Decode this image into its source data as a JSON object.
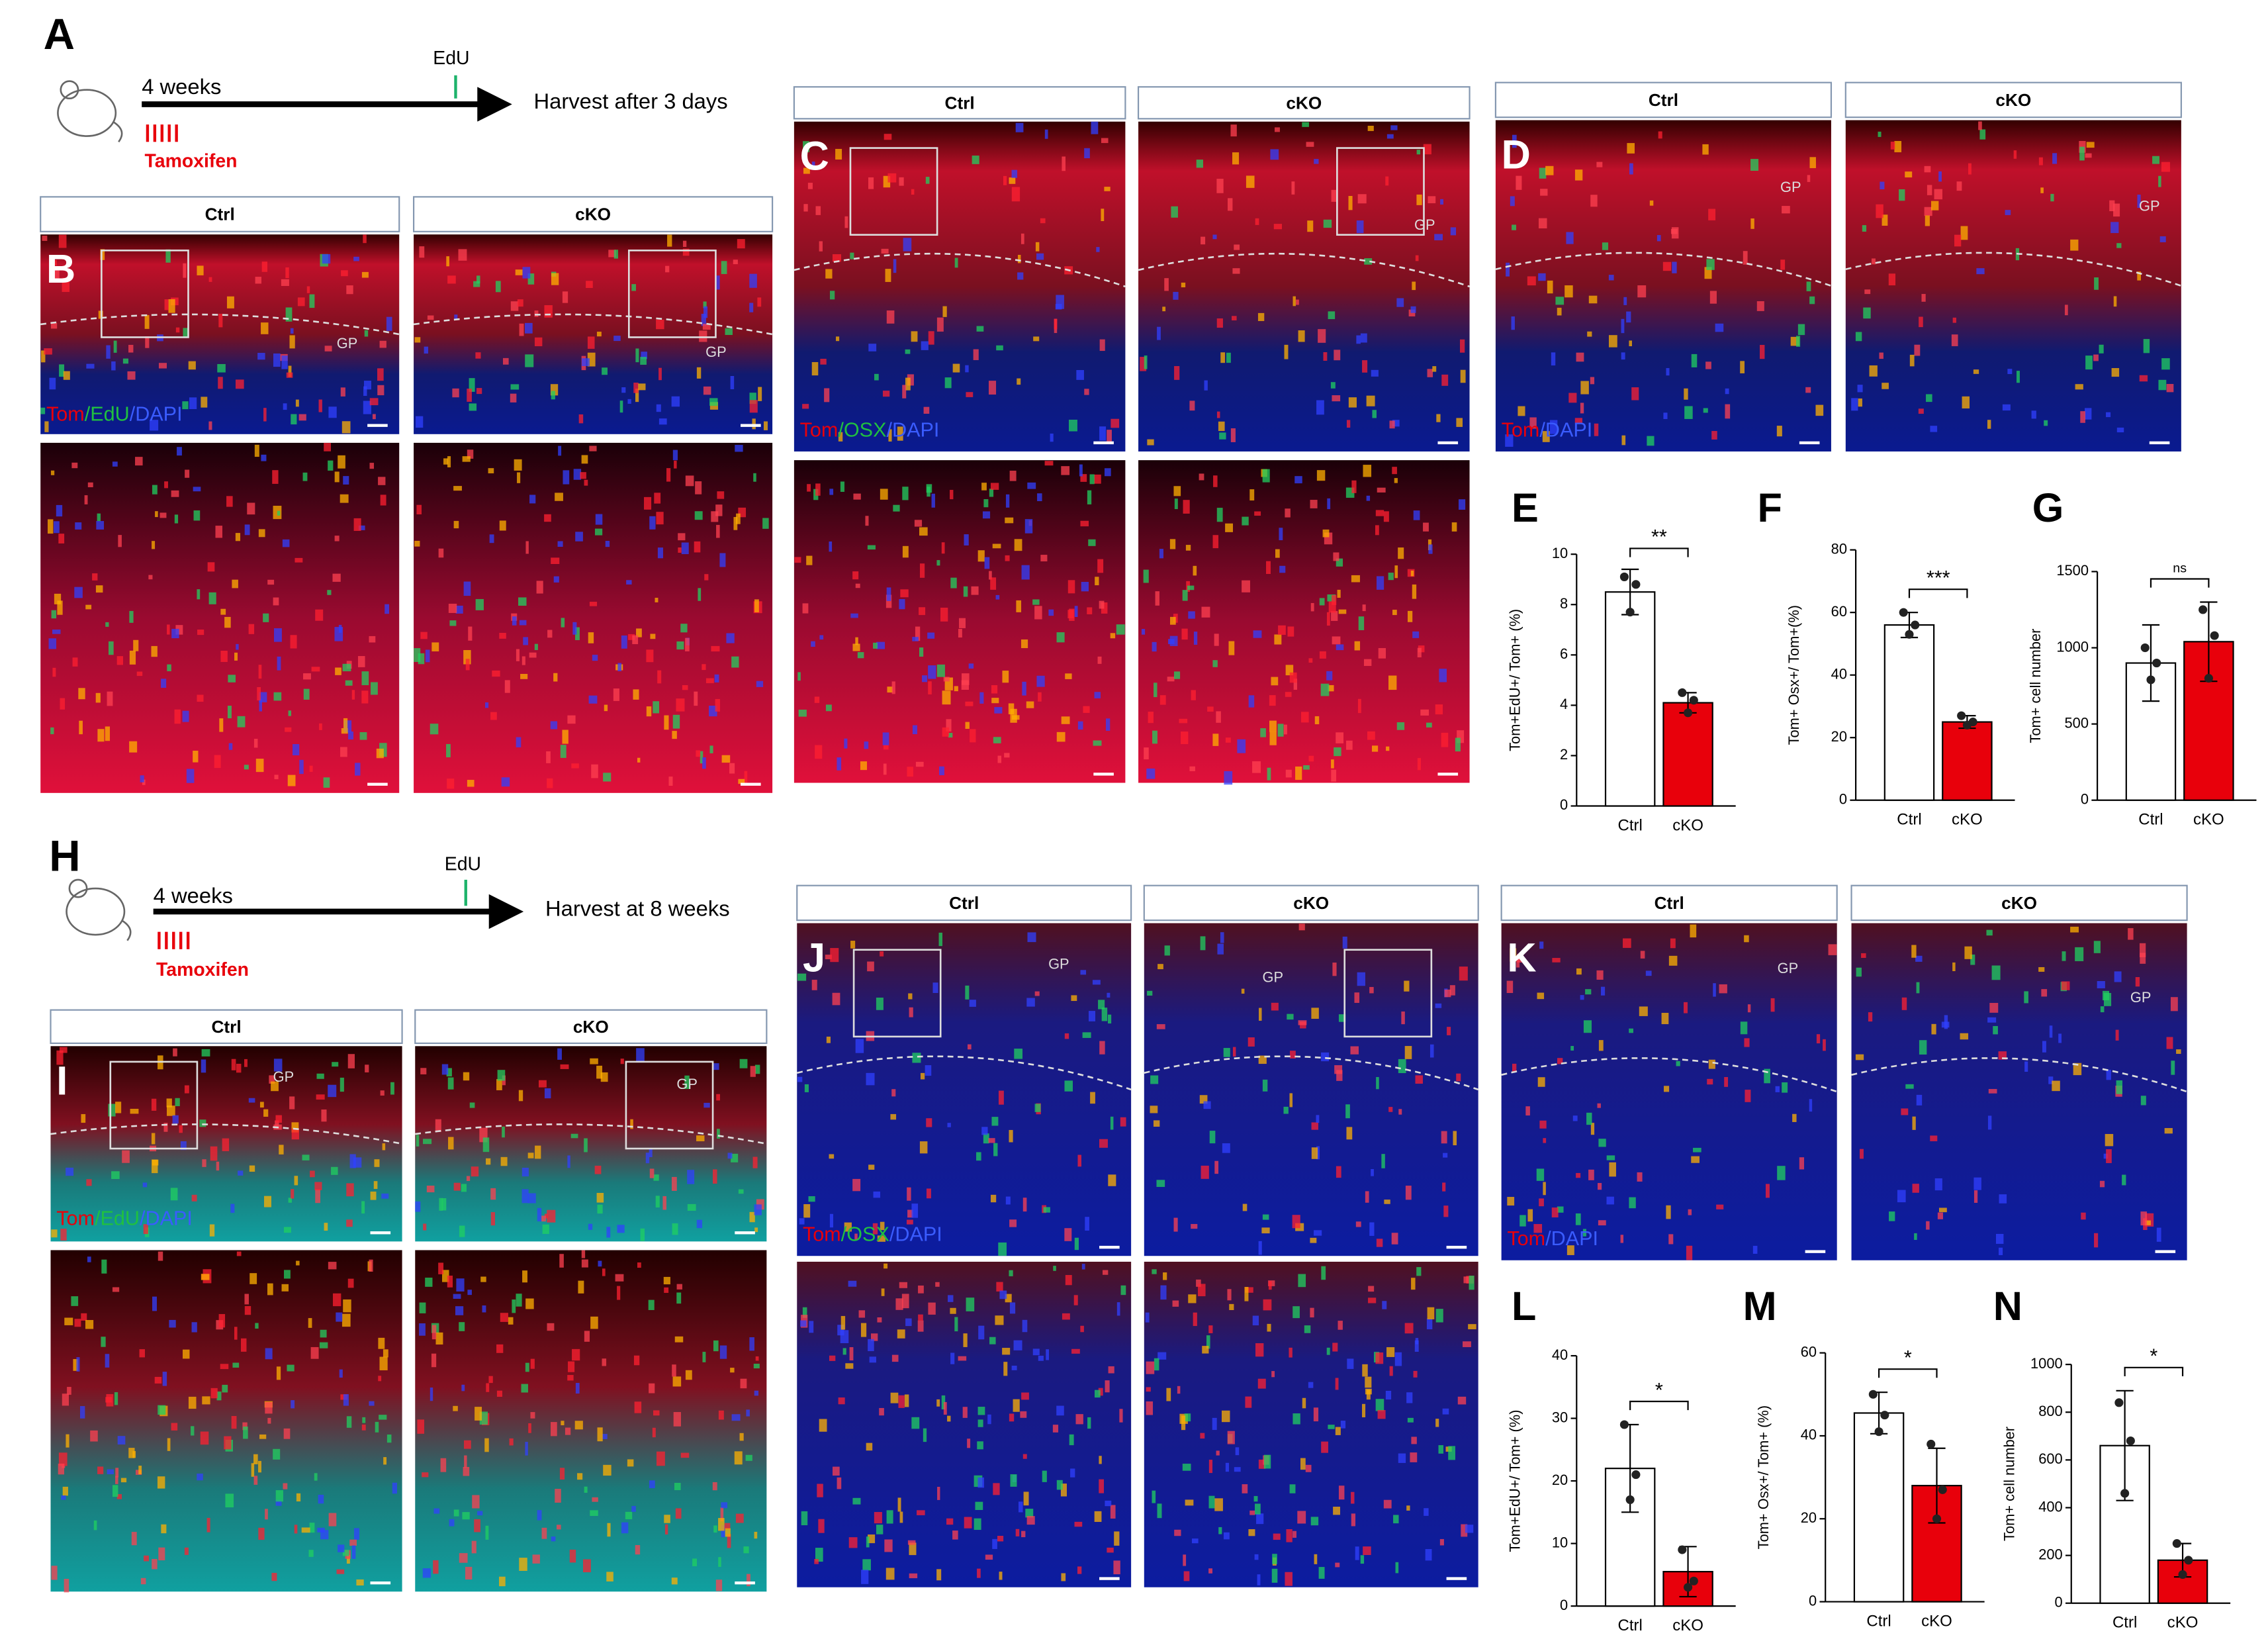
{
  "panel_labels": [
    "A",
    "B",
    "C",
    "D",
    "H",
    "I",
    "J",
    "K"
  ],
  "timelines": [
    {
      "start": "4 weeks",
      "pulse": "EdU",
      "end": "Harvest after 3 days",
      "treatment": "Tamoxifen"
    },
    {
      "start": "4 weeks",
      "pulse": "EdU",
      "end": "Harvest at 8 weeks",
      "treatment": "Tamoxifen"
    }
  ],
  "image_panels": [
    {
      "headers": [
        "Ctrl",
        "cKO"
      ],
      "stain": [
        "Tom",
        "/EdU",
        "/DAPI"
      ],
      "gp": [
        "GP",
        "GP"
      ]
    },
    {
      "headers": [
        "Ctrl",
        "cKO"
      ],
      "stain": [
        "Tom",
        "/OSX",
        "/DAPI"
      ],
      "gp": [
        "GP"
      ]
    },
    {
      "headers": [
        "Ctrl",
        "cKO"
      ],
      "stain": [
        "Tom",
        "/DAPI"
      ],
      "gp": [
        "GP",
        "GP"
      ]
    },
    {
      "headers": [
        "Ctrl",
        "cKO"
      ],
      "stain": [
        "Tom",
        "/EdU",
        "/DAPI"
      ],
      "gp": [
        "GP",
        "GP"
      ]
    },
    {
      "headers": [
        "Ctrl",
        "cKO"
      ],
      "stain": [
        "Tom",
        "/OSX",
        "/DAPI"
      ],
      "gp": [
        "GP",
        "GP"
      ]
    },
    {
      "headers": [
        "Ctrl",
        "cKO"
      ],
      "stain": [
        "Tom",
        "/DAPI"
      ],
      "gp": [
        "GP",
        "GP"
      ]
    }
  ],
  "chart_data": [
    {
      "type": "bar",
      "title": "E",
      "ylabel": "Tom+EdU+/ Tom+ (%)",
      "categories": [
        "Ctrl",
        "cKO"
      ],
      "values": [
        8.5,
        4.1
      ],
      "errors": [
        0.9,
        0.4
      ],
      "points": [
        [
          9.1,
          8.8,
          7.7
        ],
        [
          4.5,
          4.2,
          3.7
        ]
      ],
      "colors": [
        "#ffffff",
        "#e8000b"
      ],
      "significance": "**",
      "ylim": [
        0,
        10
      ],
      "yticks": [
        0,
        2,
        4,
        6,
        8,
        10
      ]
    },
    {
      "type": "bar",
      "title": "F",
      "ylabel": "Tom+ Osx+/ Tom+(%)",
      "categories": [
        "Ctrl",
        "cKO"
      ],
      "values": [
        56,
        25
      ],
      "errors": [
        4,
        2
      ],
      "points": [
        [
          60,
          56,
          53
        ],
        [
          27,
          25,
          24
        ]
      ],
      "colors": [
        "#ffffff",
        "#e8000b"
      ],
      "significance": "***",
      "ylim": [
        0,
        80
      ],
      "yticks": [
        0,
        20,
        40,
        60,
        80
      ]
    },
    {
      "type": "bar",
      "title": "G",
      "ylabel": "Tom+ cell number",
      "categories": [
        "Ctrl",
        "cKO"
      ],
      "values": [
        900,
        1040
      ],
      "errors": [
        250,
        260
      ],
      "points": [
        [
          1000,
          900,
          790
        ],
        [
          1250,
          1080,
          800
        ]
      ],
      "colors": [
        "#ffffff",
        "#e8000b"
      ],
      "significance": "ns",
      "ylim": [
        0,
        1500
      ],
      "yticks": [
        0,
        500,
        1000,
        1500
      ]
    },
    {
      "type": "bar",
      "title": "L",
      "ylabel": "Tom+EdU+/ Tom+ (%)",
      "categories": [
        "Ctrl",
        "cKO"
      ],
      "values": [
        22,
        5.5
      ],
      "errors": [
        7,
        4
      ],
      "points": [
        [
          29,
          21,
          17
        ],
        [
          9,
          4,
          3
        ]
      ],
      "colors": [
        "#ffffff",
        "#e8000b"
      ],
      "significance": "*",
      "ylim": [
        0,
        40
      ],
      "yticks": [
        0,
        10,
        20,
        30,
        40
      ]
    },
    {
      "type": "bar",
      "title": "M",
      "ylabel": "Tom+ Osx+/ Tom+ (%)",
      "categories": [
        "Ctrl",
        "cKO"
      ],
      "values": [
        45.5,
        28
      ],
      "errors": [
        5,
        9
      ],
      "points": [
        [
          50,
          45,
          41
        ],
        [
          38,
          27,
          20
        ]
      ],
      "colors": [
        "#ffffff",
        "#e8000b"
      ],
      "significance": "*",
      "ylim": [
        0,
        60
      ],
      "yticks": [
        0,
        20,
        40,
        60
      ]
    },
    {
      "type": "bar",
      "title": "N",
      "ylabel": "Tom+ cell number",
      "categories": [
        "Ctrl",
        "cKO"
      ],
      "values": [
        660,
        180
      ],
      "errors": [
        230,
        70
      ],
      "points": [
        [
          840,
          680,
          460
        ],
        [
          250,
          180,
          120
        ]
      ],
      "colors": [
        "#ffffff",
        "#e8000b"
      ],
      "significance": "*",
      "ylim": [
        0,
        1000
      ],
      "yticks": [
        0,
        200,
        400,
        600,
        800,
        1000
      ]
    }
  ]
}
